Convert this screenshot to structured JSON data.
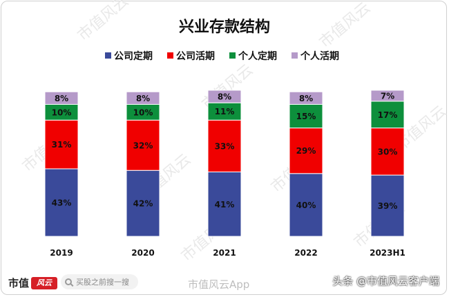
{
  "chart_data": {
    "type": "bar",
    "stacked": true,
    "title": "兴业存款结构",
    "categories": [
      "2019",
      "2020",
      "2021",
      "2022",
      "2023H1"
    ],
    "series": [
      {
        "name": "公司定期",
        "color": "#3a4a9a",
        "values": [
          43,
          42,
          41,
          40,
          39
        ]
      },
      {
        "name": "公司活期",
        "color": "#f00000",
        "values": [
          31,
          32,
          33,
          29,
          30
        ]
      },
      {
        "name": "个人定期",
        "color": "#0d8f3c",
        "values": [
          10,
          10,
          11,
          15,
          17
        ]
      },
      {
        "name": "个人活期",
        "color": "#b59ac9",
        "values": [
          8,
          8,
          8,
          8,
          7
        ]
      }
    ],
    "value_suffix": "%",
    "legend_position": "top",
    "grid": false
  },
  "watermarks": {
    "brand_text": "市值",
    "brand_mark": "风云",
    "search_placeholder": "买股之前搜一搜",
    "center_text": "市值风云App",
    "right_text": "头条 @市值风云客户端",
    "diagonal_text": "市值风云"
  }
}
